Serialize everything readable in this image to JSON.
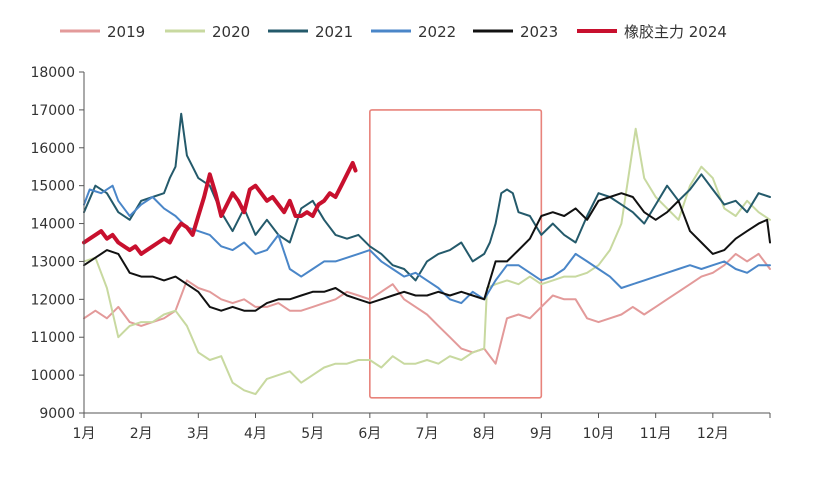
{
  "chart_data": {
    "type": "line",
    "title": "",
    "xlabel": "",
    "ylabel": "",
    "ylim": [
      9000,
      18000
    ],
    "yticks": [
      9000,
      10000,
      11000,
      12000,
      13000,
      14000,
      15000,
      16000,
      17000,
      18000
    ],
    "xlim": [
      1,
      13
    ],
    "month_labels": [
      "1月",
      "2月",
      "3月",
      "4月",
      "5月",
      "6月",
      "7月",
      "8月",
      "9月",
      "10月",
      "11月",
      "12月"
    ],
    "legend_position": "top",
    "annotation": {
      "type": "rectangle",
      "x_range": [
        6.0,
        9.0
      ],
      "y_range": [
        9400,
        17000
      ],
      "color": "#e8837b"
    },
    "series": [
      {
        "name": "2019",
        "color": "#e39a9a",
        "width": 2,
        "x": [
          1.0,
          1.2,
          1.4,
          1.6,
          1.8,
          2.0,
          2.2,
          2.4,
          2.6,
          2.8,
          3.0,
          3.2,
          3.4,
          3.6,
          3.8,
          4.0,
          4.2,
          4.4,
          4.6,
          4.8,
          5.0,
          5.2,
          5.4,
          5.6,
          5.8,
          6.0,
          6.2,
          6.4,
          6.6,
          6.8,
          7.0,
          7.2,
          7.4,
          7.6,
          7.8,
          8.0,
          8.2,
          8.4,
          8.6,
          8.8,
          9.0,
          9.2,
          9.4,
          9.6,
          9.8,
          10.0,
          10.2,
          10.4,
          10.6,
          10.8,
          11.0,
          11.2,
          11.4,
          11.6,
          11.8,
          12.0,
          12.2,
          12.4,
          12.6,
          12.8,
          13.0
        ],
        "y": [
          11500,
          11700,
          11500,
          11800,
          11400,
          11300,
          11400,
          11500,
          11700,
          12500,
          12300,
          12200,
          12000,
          11900,
          12000,
          11800,
          11800,
          11900,
          11700,
          11700,
          11800,
          11900,
          12000,
          12200,
          12100,
          12000,
          12200,
          12400,
          12000,
          11800,
          11600,
          11300,
          11000,
          10700,
          10600,
          10700,
          10300,
          11500,
          11600,
          11500,
          11800,
          12100,
          12000,
          12000,
          11500,
          11400,
          11500,
          11600,
          11800,
          11600,
          11800,
          12000,
          12200,
          12400,
          12600,
          12700,
          12900,
          13200,
          13000,
          13200,
          12800
        ]
      },
      {
        "name": "2020",
        "color": "#c8d9a0",
        "width": 2,
        "x": [
          1.0,
          1.2,
          1.4,
          1.6,
          1.8,
          2.0,
          2.2,
          2.4,
          2.6,
          2.8,
          3.0,
          3.2,
          3.4,
          3.6,
          3.8,
          4.0,
          4.2,
          4.4,
          4.6,
          4.8,
          5.0,
          5.2,
          5.4,
          5.6,
          5.8,
          6.0,
          6.2,
          6.4,
          6.6,
          6.8,
          7.0,
          7.2,
          7.4,
          7.6,
          7.8,
          8.0,
          8.05,
          8.2,
          8.4,
          8.6,
          8.8,
          9.0,
          9.2,
          9.4,
          9.6,
          9.8,
          10.0,
          10.2,
          10.4,
          10.5,
          10.6,
          10.65,
          10.8,
          11.0,
          11.2,
          11.4,
          11.6,
          11.8,
          12.0,
          12.2,
          12.4,
          12.6,
          12.8,
          13.0
        ],
        "y": [
          13000,
          13100,
          12300,
          11000,
          11300,
          11400,
          11400,
          11600,
          11700,
          11300,
          10600,
          10400,
          10500,
          9800,
          9600,
          9500,
          9900,
          10000,
          10100,
          9800,
          10000,
          10200,
          10300,
          10300,
          10400,
          10400,
          10200,
          10500,
          10300,
          10300,
          10400,
          10300,
          10500,
          10400,
          10600,
          10700,
          12300,
          12400,
          12500,
          12400,
          12600,
          12400,
          12500,
          12600,
          12600,
          12700,
          12900,
          13300,
          14000,
          15000,
          16000,
          16500,
          15200,
          14700,
          14400,
          14100,
          15000,
          15500,
          15200,
          14400,
          14200,
          14600,
          14300,
          14100
        ]
      },
      {
        "name": "2021",
        "color": "#245a6b",
        "width": 2,
        "x": [
          1.0,
          1.2,
          1.4,
          1.6,
          1.8,
          2.0,
          2.2,
          2.4,
          2.5,
          2.6,
          2.7,
          2.8,
          2.9,
          3.0,
          3.2,
          3.4,
          3.6,
          3.8,
          4.0,
          4.2,
          4.4,
          4.6,
          4.8,
          5.0,
          5.2,
          5.4,
          5.6,
          5.8,
          6.0,
          6.2,
          6.4,
          6.6,
          6.8,
          7.0,
          7.2,
          7.4,
          7.6,
          7.8,
          8.0,
          8.1,
          8.2,
          8.3,
          8.4,
          8.5,
          8.6,
          8.8,
          9.0,
          9.2,
          9.4,
          9.6,
          9.8,
          10.0,
          10.2,
          10.4,
          10.6,
          10.8,
          11.0,
          11.2,
          11.4,
          11.6,
          11.8,
          12.0,
          12.2,
          12.4,
          12.6,
          12.8,
          13.0
        ],
        "y": [
          14300,
          15000,
          14800,
          14300,
          14100,
          14600,
          14700,
          14800,
          15200,
          15500,
          16900,
          15800,
          15500,
          15200,
          15000,
          14300,
          13800,
          14400,
          13700,
          14100,
          13700,
          13500,
          14400,
          14600,
          14100,
          13700,
          13600,
          13700,
          13400,
          13200,
          12900,
          12800,
          12500,
          13000,
          13200,
          13300,
          13500,
          13000,
          13200,
          13500,
          14000,
          14800,
          14900,
          14800,
          14300,
          14200,
          13700,
          14000,
          13700,
          13500,
          14200,
          14800,
          14700,
          14500,
          14300,
          14000,
          14500,
          15000,
          14600,
          14900,
          15300,
          14900,
          14500,
          14600,
          14300,
          14800,
          14700
        ]
      },
      {
        "name": "2022",
        "color": "#4a86c8",
        "width": 2,
        "x": [
          1.0,
          1.1,
          1.3,
          1.5,
          1.6,
          1.8,
          2.0,
          2.2,
          2.4,
          2.6,
          2.8,
          3.0,
          3.2,
          3.4,
          3.6,
          3.8,
          4.0,
          4.2,
          4.4,
          4.6,
          4.8,
          5.0,
          5.2,
          5.4,
          5.6,
          5.8,
          6.0,
          6.2,
          6.4,
          6.6,
          6.8,
          7.0,
          7.2,
          7.4,
          7.6,
          7.8,
          8.0,
          8.2,
          8.4,
          8.6,
          8.8,
          9.0,
          9.2,
          9.4,
          9.6,
          9.8,
          10.0,
          10.2,
          10.4,
          10.6,
          10.8,
          11.0,
          11.2,
          11.4,
          11.6,
          11.8,
          12.0,
          12.2,
          12.4,
          12.6,
          12.8,
          13.0
        ],
        "y": [
          14500,
          14900,
          14800,
          15000,
          14600,
          14200,
          14500,
          14700,
          14400,
          14200,
          13900,
          13800,
          13700,
          13400,
          13300,
          13500,
          13200,
          13300,
          13700,
          12800,
          12600,
          12800,
          13000,
          13000,
          13100,
          13200,
          13300,
          13000,
          12800,
          12600,
          12700,
          12500,
          12300,
          12000,
          11900,
          12200,
          12000,
          12500,
          12900,
          12900,
          12700,
          12500,
          12600,
          12800,
          13200,
          13000,
          12800,
          12600,
          12300,
          12400,
          12500,
          12600,
          12700,
          12800,
          12900,
          12800,
          12900,
          13000,
          12800,
          12700,
          12900,
          12900
        ]
      },
      {
        "name": "2023",
        "color": "#111111",
        "width": 2,
        "x": [
          1.0,
          1.2,
          1.4,
          1.6,
          1.8,
          2.0,
          2.2,
          2.4,
          2.6,
          2.8,
          3.0,
          3.2,
          3.4,
          3.6,
          3.8,
          4.0,
          4.2,
          4.4,
          4.6,
          4.8,
          5.0,
          5.2,
          5.4,
          5.6,
          5.8,
          6.0,
          6.2,
          6.4,
          6.6,
          6.8,
          7.0,
          7.2,
          7.4,
          7.6,
          7.8,
          8.0,
          8.2,
          8.4,
          8.6,
          8.8,
          9.0,
          9.2,
          9.4,
          9.6,
          9.8,
          10.0,
          10.2,
          10.4,
          10.6,
          10.8,
          11.0,
          11.2,
          11.4,
          11.6,
          11.8,
          12.0,
          12.2,
          12.4,
          12.6,
          12.8,
          12.95,
          13.0
        ],
        "y": [
          12900,
          13100,
          13300,
          13200,
          12700,
          12600,
          12600,
          12500,
          12600,
          12400,
          12200,
          11800,
          11700,
          11800,
          11700,
          11700,
          11900,
          12000,
          12000,
          12100,
          12200,
          12200,
          12300,
          12100,
          12000,
          11900,
          12000,
          12100,
          12200,
          12100,
          12100,
          12200,
          12100,
          12200,
          12100,
          12000,
          13000,
          13000,
          13300,
          13600,
          14200,
          14300,
          14200,
          14400,
          14100,
          14600,
          14700,
          14800,
          14700,
          14300,
          14100,
          14300,
          14600,
          13800,
          13500,
          13200,
          13300,
          13600,
          13800,
          14000,
          14100,
          13500
        ]
      },
      {
        "name": "橡胶主力 2024",
        "color": "#c8102e",
        "width": 4,
        "x": [
          1.0,
          1.1,
          1.2,
          1.3,
          1.4,
          1.5,
          1.6,
          1.7,
          1.8,
          1.9,
          2.0,
          2.1,
          2.2,
          2.3,
          2.4,
          2.5,
          2.6,
          2.7,
          2.8,
          2.9,
          3.0,
          3.1,
          3.2,
          3.3,
          3.4,
          3.5,
          3.6,
          3.7,
          3.8,
          3.9,
          4.0,
          4.1,
          4.2,
          4.3,
          4.4,
          4.5,
          4.6,
          4.7,
          4.8,
          4.9,
          5.0,
          5.1,
          5.2,
          5.3,
          5.4,
          5.5,
          5.6,
          5.7,
          5.75
        ],
        "y": [
          13500,
          13600,
          13700,
          13800,
          13600,
          13700,
          13500,
          13400,
          13300,
          13400,
          13200,
          13300,
          13400,
          13500,
          13600,
          13500,
          13800,
          14000,
          13900,
          13700,
          14200,
          14700,
          15300,
          14800,
          14200,
          14500,
          14800,
          14600,
          14300,
          14900,
          15000,
          14800,
          14600,
          14700,
          14500,
          14300,
          14600,
          14200,
          14200,
          14300,
          14200,
          14500,
          14600,
          14800,
          14700,
          15000,
          15300,
          15600,
          15400
        ]
      }
    ]
  }
}
